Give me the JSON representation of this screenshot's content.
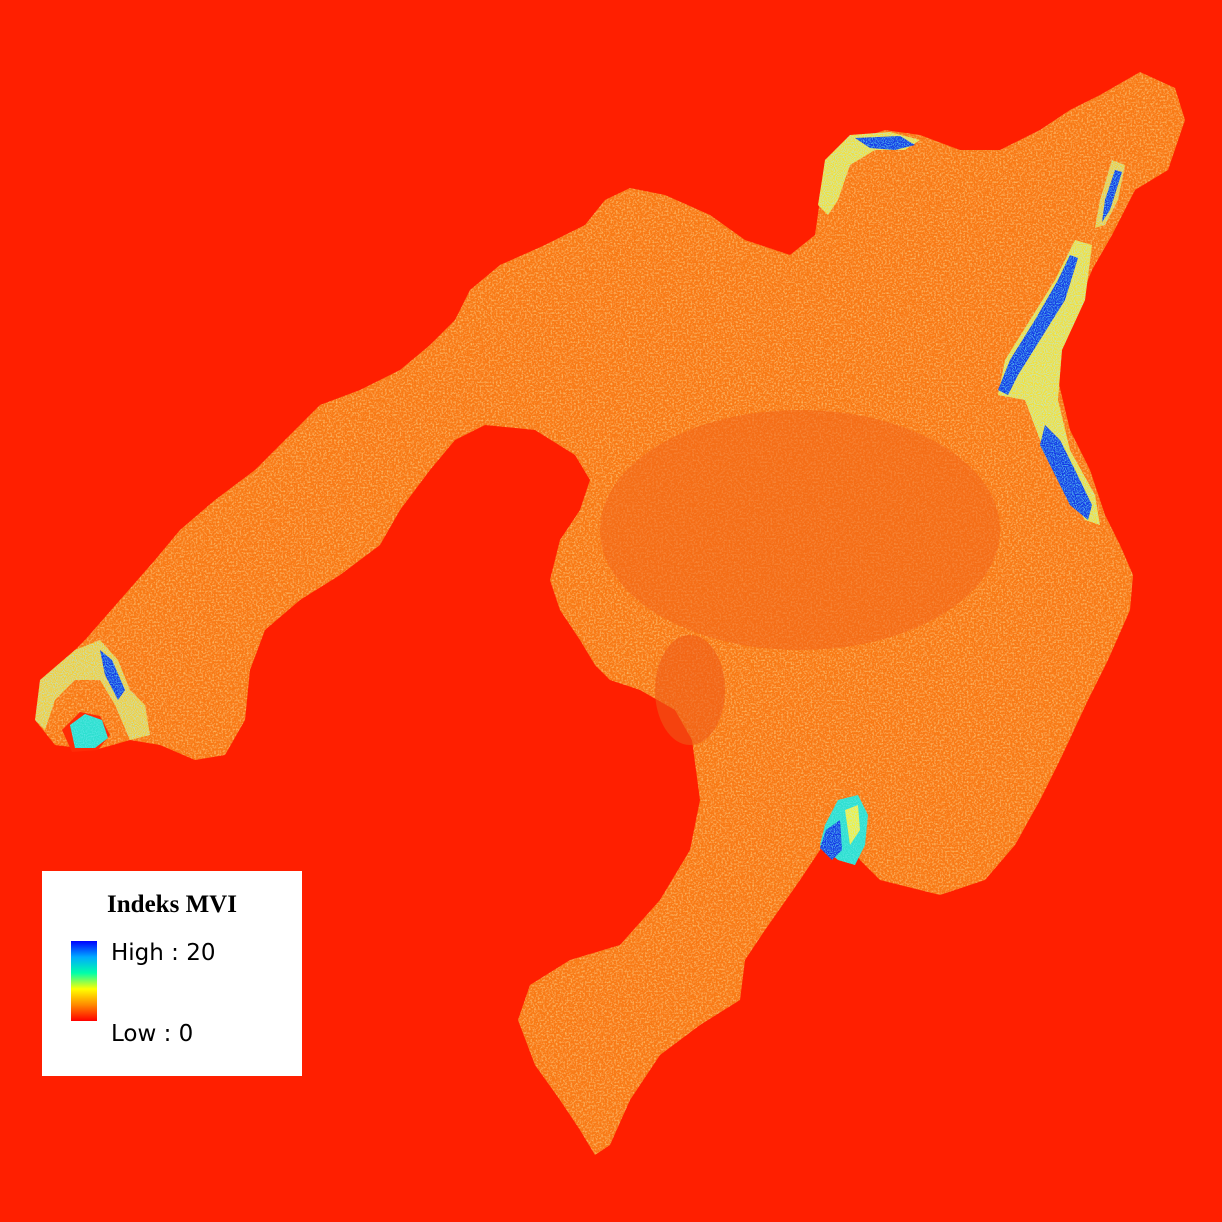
{
  "legend": {
    "title": "Indeks MVI",
    "high_label": "High : 20",
    "low_label": "Low : 0",
    "color_ramp": [
      "#0000ff",
      "#00aaff",
      "#00ffaa",
      "#ffff00",
      "#ff8800",
      "#ff0000"
    ]
  },
  "colors": {
    "background_low": "#ff1f00",
    "land": "#f97a18",
    "land_speckle_light": "#f4a93a",
    "land_speckle_dark": "#f0581a",
    "mangrove_high": "#1030e0",
    "mangrove_mid": "#2ee0d0",
    "mangrove_yellow": "#f0f040"
  }
}
